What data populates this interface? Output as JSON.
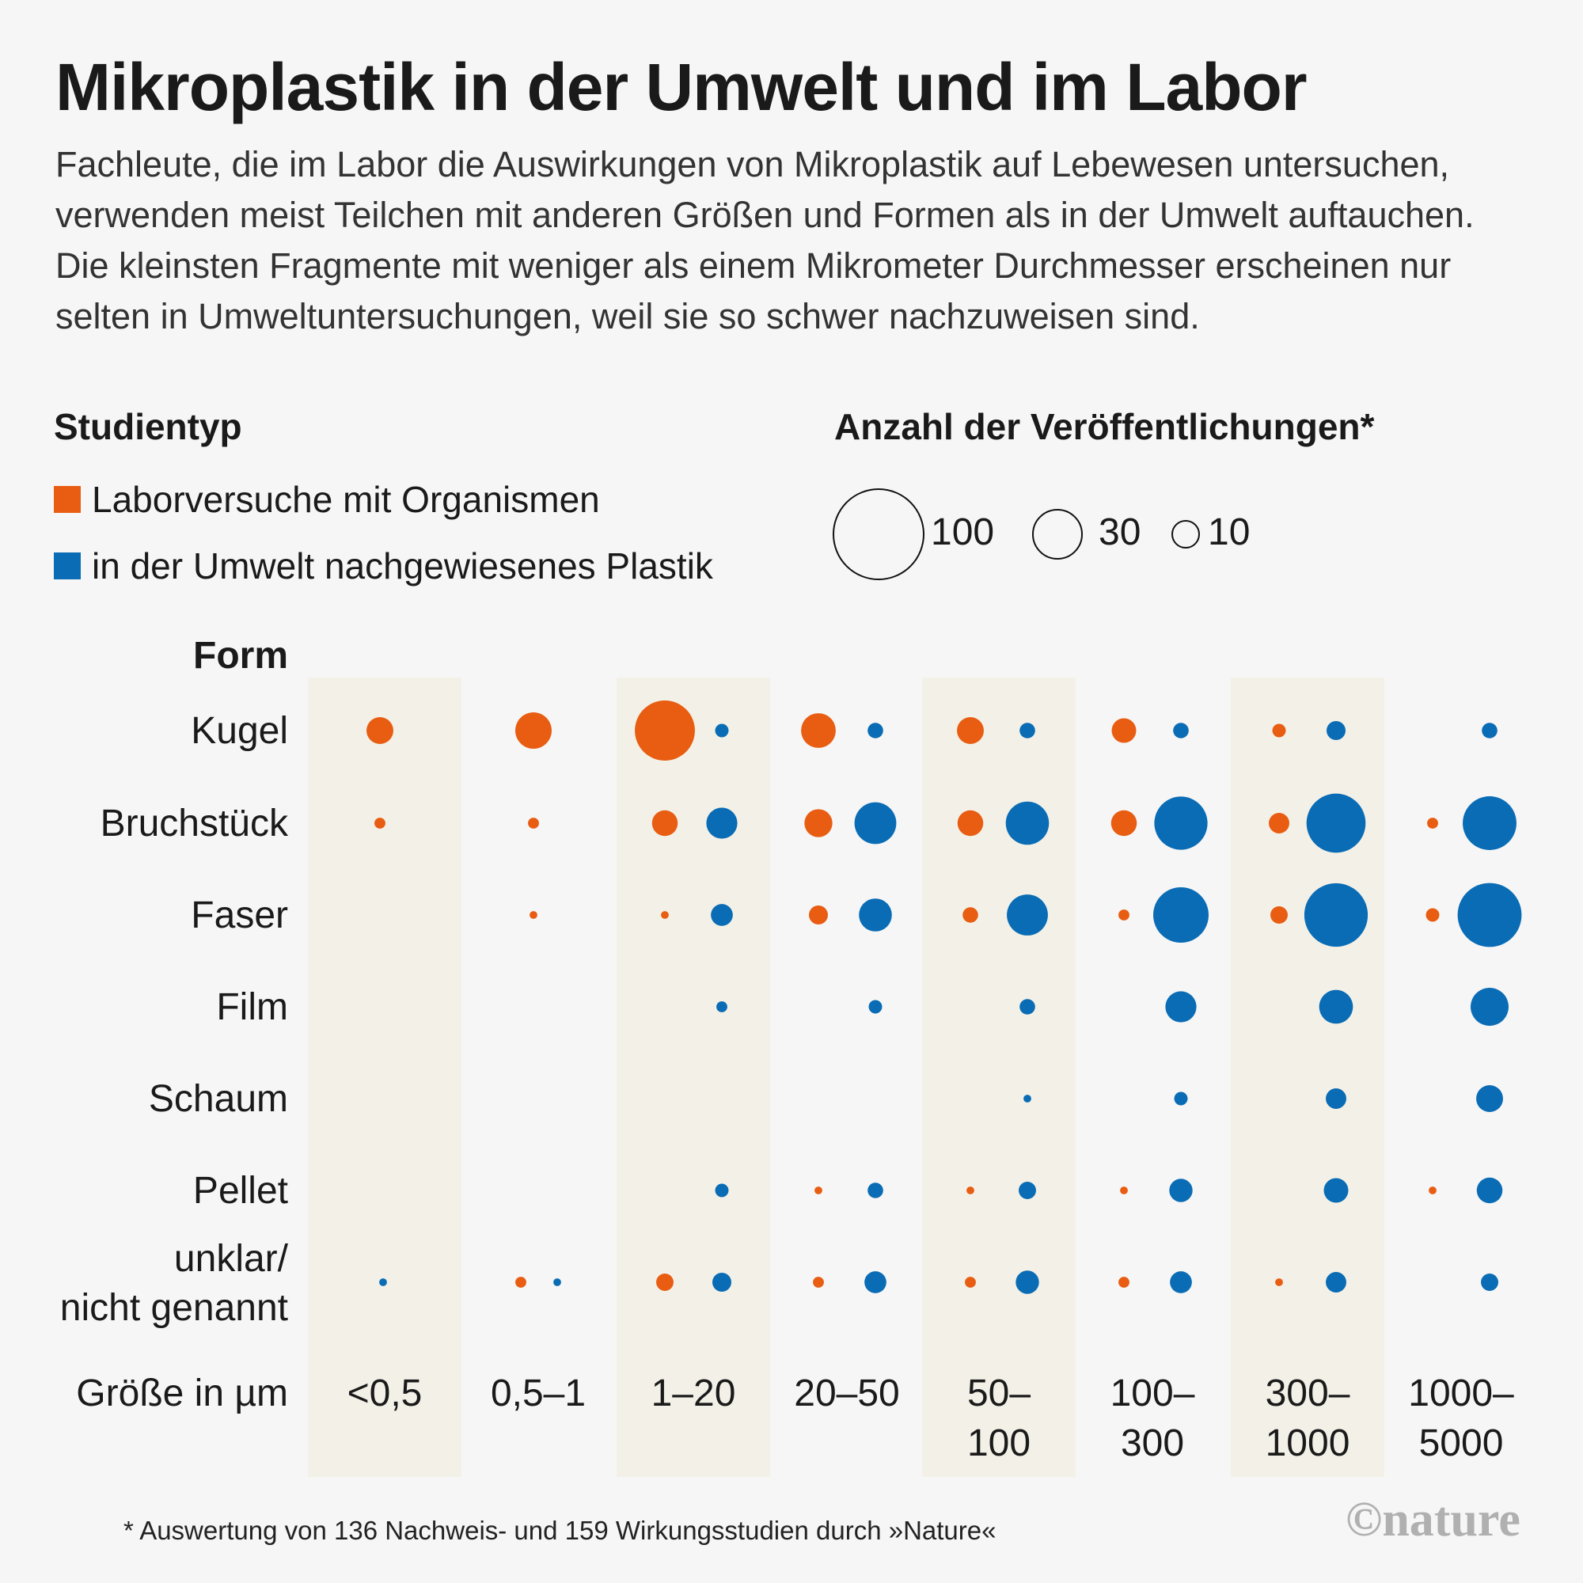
{
  "title": "Mikroplastik in der Umwelt und im Labor",
  "intro": [
    "Fachleute, die im Labor die Auswirkungen von Mikroplastik auf Lebewesen untersuchen,",
    "verwenden meist Teilchen mit anderen Größen und Formen als in der Umwelt auftauchen.",
    "Die kleinsten Fragmente mit weniger als einem Mikrometer Durchmesser erscheinen nur",
    "selten in Umweltuntersuchungen, weil sie so schwer nachzuweisen sind."
  ],
  "legend": {
    "type_heading": "Studientyp",
    "lab_label": "Laborversuche mit Organismen",
    "env_label": "in der Umwelt nachgewiesenes Plastik",
    "size_heading": "Anzahl der Veröffentlichungen*",
    "size_100": "100",
    "size_30": "30",
    "size_10": "10"
  },
  "colors": {
    "lab": "#e85d12",
    "env": "#0a6cb5",
    "band": "#f3f1e7",
    "background": "#f6f6f6"
  },
  "chart_data": {
    "type": "bubble",
    "row_heading": "Form",
    "col_heading": "Größe in µm",
    "rows": [
      "Kugel",
      "Bruchstück",
      "Faser",
      "Film",
      "Schaum",
      "Pellet",
      "unklar/\nnicht genannt"
    ],
    "columns": [
      "<0,5",
      "0,5–1",
      "1–20",
      "20–50",
      "50–\n100",
      "100–\n300",
      "300–\n1000",
      "1000–\n5000"
    ],
    "series": [
      {
        "name": "Laborversuche mit Organismen",
        "values": [
          [
            12,
            22,
            60,
            20,
            12,
            10,
            3,
            0
          ],
          [
            2,
            2,
            11,
            13,
            11,
            11,
            7,
            2
          ],
          [
            0,
            1,
            1,
            6,
            4,
            2,
            5,
            3
          ],
          [
            0,
            0,
            0,
            0,
            0,
            0,
            0,
            0
          ],
          [
            0,
            0,
            0,
            0,
            0,
            0,
            0,
            0
          ],
          [
            0,
            0,
            0,
            1,
            1,
            1,
            0,
            1
          ],
          [
            0,
            2,
            5,
            2,
            2,
            2,
            1,
            0
          ]
        ]
      },
      {
        "name": "in der Umwelt nachgewiesenes Plastik",
        "values": [
          [
            0,
            0,
            3,
            4,
            4,
            4,
            6,
            4
          ],
          [
            0,
            0,
            16,
            29,
            31,
            47,
            58,
            48
          ],
          [
            0,
            0,
            8,
            18,
            28,
            51,
            67,
            68
          ],
          [
            0,
            0,
            2,
            3,
            4,
            16,
            19,
            24
          ],
          [
            0,
            0,
            0,
            0,
            1,
            3,
            7,
            12
          ],
          [
            0,
            0,
            3,
            4,
            5,
            9,
            10,
            11
          ],
          [
            1,
            1,
            6,
            8,
            9,
            8,
            7,
            5
          ]
        ]
      }
    ],
    "scale_reference": [
      100,
      30,
      10
    ]
  },
  "footnote": "* Auswertung von 136 Nachweis- und 159 Wirkungsstudien durch »Nature«",
  "logo": "©nature"
}
